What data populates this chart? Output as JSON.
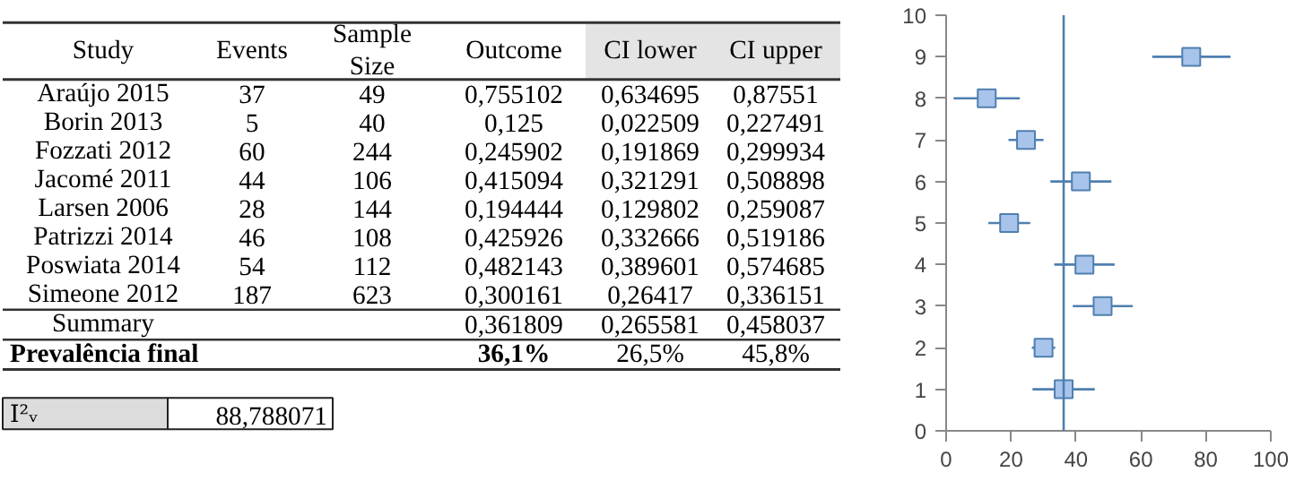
{
  "chart_data": [
    {
      "type": "other",
      "ylabel": "Study",
      "categories": [
        "Events",
        "Sample\nSize",
        "Outcome",
        "CI lower",
        "CI upper"
      ],
      "y_categories": [
        "Araújo 2015",
        "Borin 2013",
        "Fozzati 2012",
        "Jacomé 2011",
        "Larsen 2006",
        "Patrizzi 2014",
        "Poswiata 2014",
        "Simeone 2012",
        "Summary",
        "Prevalência final"
      ],
      "cell_labels": [
        [
          "37",
          "49",
          "0,755102",
          "0,634695",
          "0,87551"
        ],
        [
          "5",
          "40",
          "0,125",
          "0,022509",
          "0,227491"
        ],
        [
          "60",
          "244",
          "0,245902",
          "0,191869",
          "0,299934"
        ],
        [
          "44",
          "106",
          "0,415094",
          "0,321291",
          "0,508898"
        ],
        [
          "28",
          "144",
          "0,194444",
          "0,129802",
          "0,259087"
        ],
        [
          "46",
          "108",
          "0,425926",
          "0,332666",
          "0,519186"
        ],
        [
          "54",
          "112",
          "0,482143",
          "0,389601",
          "0,574685"
        ],
        [
          "187",
          "623",
          "0,300161",
          "0,26417",
          "0,336151"
        ],
        [
          null,
          null,
          "0,361809",
          "0,265581",
          "0,458037"
        ],
        [
          null,
          null,
          "36,1%",
          "26,5%",
          "45,8%"
        ]
      ],
      "annotations": [
        "I²ᵥ",
        "88,788071"
      ]
    },
    {
      "type": "scatter",
      "x": [
        75.5,
        12.5,
        24.6,
        41.5,
        19.4,
        42.6,
        48.2,
        30.0,
        36.2
      ],
      "values": [
        9,
        8,
        7,
        6,
        5,
        4,
        3,
        2,
        1
      ],
      "xerrors": [
        [
          63.5,
          87.6
        ],
        [
          2.3,
          22.7
        ],
        [
          19.2,
          30.0
        ],
        [
          32.1,
          50.9
        ],
        [
          13.0,
          25.9
        ],
        [
          33.3,
          51.9
        ],
        [
          39.0,
          57.5
        ],
        [
          26.4,
          33.6
        ],
        [
          26.6,
          45.8
        ]
      ],
      "color": "#a9c4eb",
      "marker": "square",
      "xlim": [
        0,
        100
      ],
      "ylim": [
        0,
        10
      ],
      "xticks": [
        0,
        20,
        40,
        60,
        80,
        100
      ],
      "yticks": [
        0,
        1,
        2,
        3,
        4,
        5,
        6,
        7,
        8,
        9,
        10
      ],
      "ref_lines": [
        {
          "axis": "x",
          "value": 36.2,
          "color": "#4f7fb0"
        }
      ],
      "grid": false
    }
  ]
}
